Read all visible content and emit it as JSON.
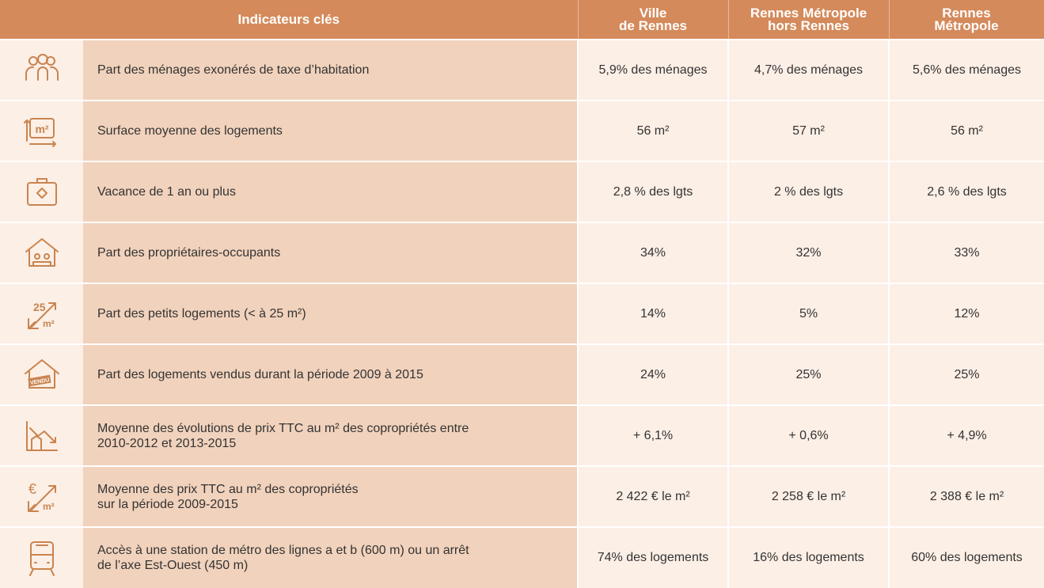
{
  "header": {
    "indicators": "Indicateurs clés",
    "columns": [
      [
        "Ville",
        "de Rennes"
      ],
      [
        "Rennes Métropole",
        "hors Rennes"
      ],
      [
        "Rennes",
        "Métropole"
      ]
    ]
  },
  "rows": [
    {
      "label": [
        "Part des ménages exonérés de taxe d’habitation"
      ],
      "values": [
        "5,9% des ménages",
        "4,7% des ménages",
        "5,6% des ménages"
      ]
    },
    {
      "label": [
        "Surface moyenne des logements"
      ],
      "values": [
        "56 m²",
        "57 m²",
        "56 m²"
      ]
    },
    {
      "label": [
        "Vacance de 1 an ou plus"
      ],
      "values": [
        "2,8 % des lgts",
        "2 % des lgts",
        "2,6 % des lgts"
      ]
    },
    {
      "label": [
        "Part des propriétaires-occupants"
      ],
      "values": [
        "34%",
        "32%",
        "33%"
      ]
    },
    {
      "label": [
        "Part des petits logements (< à 25 m²)"
      ],
      "values": [
        "14%",
        "5%",
        "12%"
      ]
    },
    {
      "label": [
        "Part des logements vendus durant la période 2009 à 2015"
      ],
      "values": [
        "24%",
        "25%",
        "25%"
      ]
    },
    {
      "label": [
        "Moyenne des évolutions de prix TTC au m² des copropriétés entre",
        "2010-2012 et 2013-2015"
      ],
      "values": [
        "+ 6,1%",
        "+ 0,6%",
        "+ 4,9%"
      ]
    },
    {
      "label": [
        "Moyenne des prix TTC au m² des copropriétés",
        "sur la période 2009-2015"
      ],
      "values": [
        "2 422 € le m²",
        "2 258 € le m²",
        "2 388 € le m²"
      ]
    },
    {
      "label": [
        "Accès à une station de métro des lignes a et b (600 m) ou un arrêt",
        "de l’axe Est-Ouest (450 m)"
      ],
      "values": [
        "74% des logements",
        "16% des logements",
        "60% des logements"
      ]
    }
  ]
}
